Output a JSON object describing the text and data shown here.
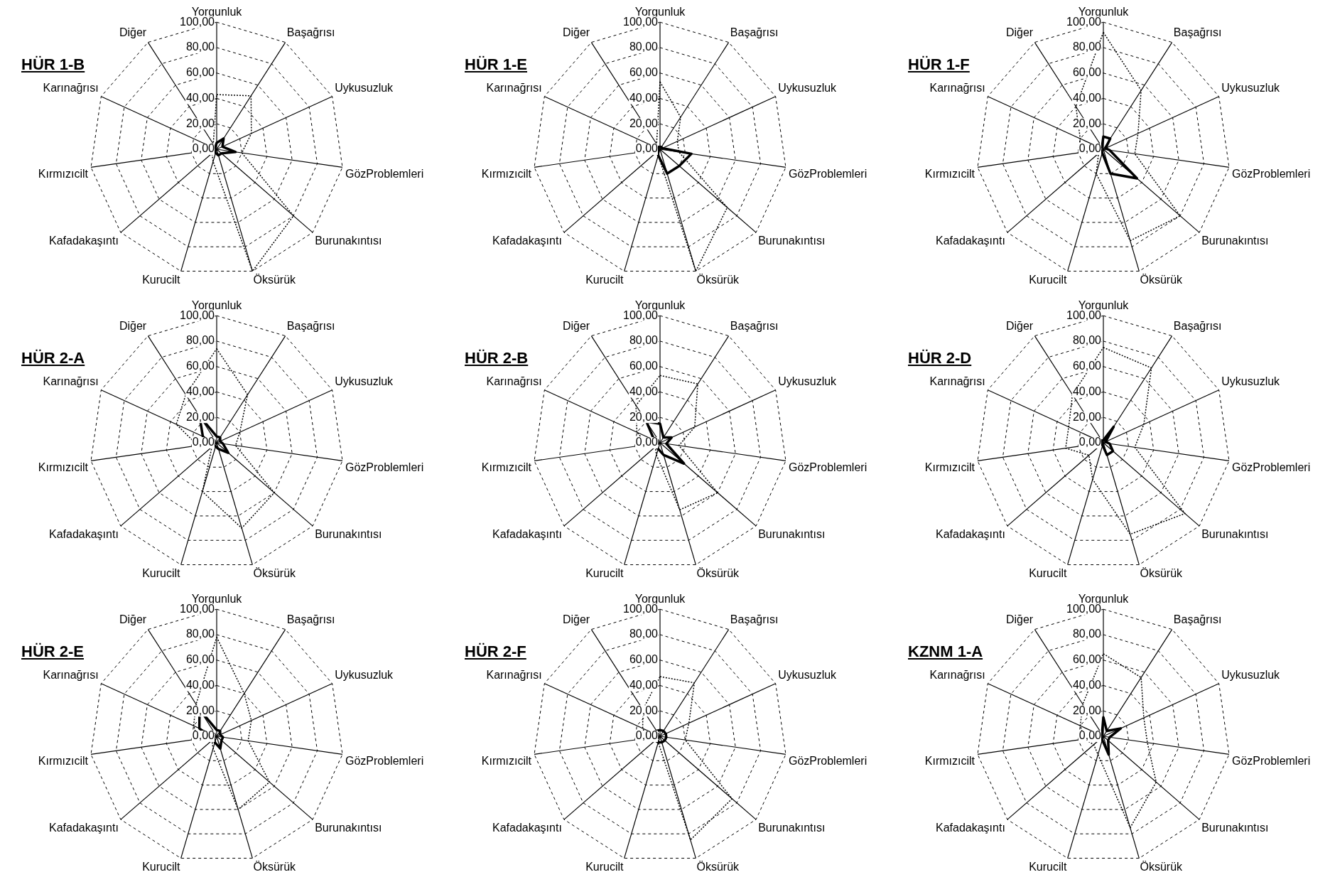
{
  "chart_data": [
    {
      "type": "radar",
      "title": "HÜR 1-B",
      "categories": [
        "Yorgunluk",
        "Başağrısı",
        "Uykusuzluk",
        "GözProblemleri",
        "Burunakıntısı",
        "Öksürük",
        "Kurucilt",
        "Kafadakaşıntı",
        "Kırmızıcilt",
        "Karınağrısı",
        "Diğer"
      ],
      "ylim": [
        0,
        100
      ],
      "yticks": [
        {
          "value": 0,
          "label": "0,00"
        },
        {
          "value": 20,
          "label": "20,00"
        },
        {
          "value": 40,
          "label": "40,00"
        },
        {
          "value": 60,
          "label": "60,00"
        },
        {
          "value": 80,
          "label": "80,00"
        },
        {
          "value": 100,
          "label": "100,00"
        }
      ],
      "grid": true,
      "legend": false,
      "marker": "none",
      "series": [
        {
          "color": "#000000",
          "line_style": "dotted",
          "values": [
            43,
            50,
            30,
            20,
            80,
            100,
            10,
            5,
            5,
            5,
            5
          ]
        },
        {
          "color": "#000000",
          "line_style": "solid",
          "values": [
            5,
            10,
            5,
            15,
            5,
            5,
            3,
            2,
            2,
            2,
            2
          ]
        }
      ]
    },
    {
      "type": "radar",
      "title": "HÜR 1-E",
      "categories": [
        "Yorgunluk",
        "Başağrısı",
        "Uykusuzluk",
        "GözProblemleri",
        "Burunakıntısı",
        "Öksürük",
        "Kurucilt",
        "Kafadakaşıntı",
        "Kırmızıcilt",
        "Karınağrısı",
        "Diğer"
      ],
      "ylim": [
        0,
        100
      ],
      "yticks": [
        {
          "value": 0,
          "label": "0,00"
        },
        {
          "value": 20,
          "label": "20,00"
        },
        {
          "value": 40,
          "label": "40,00"
        },
        {
          "value": 60,
          "label": "60,00"
        },
        {
          "value": 80,
          "label": "80,00"
        },
        {
          "value": 100,
          "label": "100,00"
        }
      ],
      "grid": true,
      "legend": false,
      "marker": "none",
      "series": [
        {
          "color": "#000000",
          "line_style": "dotted",
          "values": [
            53,
            30,
            15,
            15,
            70,
            100,
            5,
            2,
            2,
            3,
            5
          ]
        },
        {
          "color": "#000000",
          "line_style": "solid",
          "values": [
            2,
            2,
            2,
            25,
            20,
            20,
            5,
            2,
            2,
            2,
            2
          ]
        }
      ]
    },
    {
      "type": "radar",
      "title": "HÜR 1-F",
      "categories": [
        "Yorgunluk",
        "Başağrısı",
        "Uykusuzluk",
        "GözProblemleri",
        "Burunakıntısı",
        "Öksürük",
        "Kurucilt",
        "Kafadakaşıntı",
        "Kırmızıcilt",
        "Karınağrısı",
        "Diğer"
      ],
      "ylim": [
        0,
        100
      ],
      "yticks": [
        {
          "value": 0,
          "label": "0,00"
        },
        {
          "value": 20,
          "label": "20,00"
        },
        {
          "value": 40,
          "label": "40,00"
        },
        {
          "value": 60,
          "label": "60,00"
        },
        {
          "value": 80,
          "label": "80,00"
        },
        {
          "value": 100,
          "label": "100,00"
        }
      ],
      "grid": true,
      "legend": false,
      "marker": "none",
      "series": [
        {
          "color": "#000000",
          "line_style": "dotted",
          "values": [
            92,
            55,
            30,
            25,
            80,
            75,
            20,
            5,
            20,
            20,
            40
          ]
        },
        {
          "color": "#000000",
          "line_style": "solid",
          "values": [
            10,
            10,
            2,
            5,
            35,
            20,
            3,
            2,
            3,
            3,
            2
          ]
        }
      ]
    },
    {
      "type": "radar",
      "title": "HÜR 2-A",
      "categories": [
        "Yorgunluk",
        "Başağrısı",
        "Uykusuzluk",
        "GözProblemleri",
        "Burunakıntısı",
        "Öksürük",
        "Kurucilt",
        "Kafadakaşıntı",
        "Kırmızıcilt",
        "Karınağrısı",
        "Diğer"
      ],
      "ylim": [
        0,
        100
      ],
      "yticks": [
        {
          "value": 0,
          "label": "0,00"
        },
        {
          "value": 20,
          "label": "20,00"
        },
        {
          "value": 40,
          "label": "40,00"
        },
        {
          "value": 60,
          "label": "60,00"
        },
        {
          "value": 80,
          "label": "80,00"
        },
        {
          "value": 100,
          "label": "100,00"
        }
      ],
      "grid": true,
      "legend": false,
      "marker": "none",
      "series": [
        {
          "color": "#000000",
          "line_style": "dotted",
          "values": [
            74,
            45,
            20,
            15,
            60,
            70,
            40,
            5,
            15,
            35,
            45
          ]
        },
        {
          "color": "#000000",
          "line_style": "solid",
          "values": [
            5,
            5,
            3,
            5,
            12,
            5,
            3,
            3,
            5,
            12,
            25
          ]
        }
      ]
    },
    {
      "type": "radar",
      "title": "HÜR 2-B",
      "categories": [
        "Yorgunluk",
        "Başağrısı",
        "Uykusuzluk",
        "GözProblemleri",
        "Burunakıntısı",
        "Öksürük",
        "Kurucilt",
        "Kafadakaşıntı",
        "Kırmızıcilt",
        "Karınağrısı",
        "Diğer"
      ],
      "ylim": [
        0,
        100
      ],
      "yticks": [
        {
          "value": 0,
          "label": "0,00"
        },
        {
          "value": 20,
          "label": "20,00"
        },
        {
          "value": 40,
          "label": "40,00"
        },
        {
          "value": 60,
          "label": "60,00"
        },
        {
          "value": 80,
          "label": "80,00"
        },
        {
          "value": 100,
          "label": "100,00"
        }
      ],
      "grid": true,
      "legend": false,
      "marker": "none",
      "series": [
        {
          "color": "#000000",
          "line_style": "dotted",
          "values": [
            53,
            55,
            30,
            15,
            60,
            55,
            10,
            5,
            10,
            20,
            35
          ]
        },
        {
          "color": "#000000",
          "line_style": "solid",
          "values": [
            15,
            5,
            10,
            5,
            25,
            10,
            5,
            5,
            10,
            5,
            20
          ]
        }
      ]
    },
    {
      "type": "radar",
      "title": "HÜR 2-D",
      "categories": [
        "Yorgunluk",
        "Başağrısı",
        "Uykusuzluk",
        "GözProblemleri",
        "Burunakıntısı",
        "Öksürük",
        "Kurucilt",
        "Kafadakaşıntı",
        "Kırmızıcilt",
        "Karınağrısı",
        "Diğer"
      ],
      "ylim": [
        0,
        100
      ],
      "yticks": [
        {
          "value": 0,
          "label": "0,00"
        },
        {
          "value": 20,
          "label": "20,00"
        },
        {
          "value": 40,
          "label": "40,00"
        },
        {
          "value": 60,
          "label": "60,00"
        },
        {
          "value": 80,
          "label": "80,00"
        },
        {
          "value": 100,
          "label": "100,00"
        }
      ],
      "grid": true,
      "legend": false,
      "marker": "none",
      "series": [
        {
          "color": "#000000",
          "line_style": "dotted",
          "values": [
            75,
            70,
            35,
            25,
            85,
            75,
            30,
            15,
            30,
            30,
            45
          ]
        },
        {
          "color": "#000000",
          "line_style": "solid",
          "values": [
            2,
            15,
            2,
            5,
            10,
            10,
            2,
            2,
            2,
            2,
            2
          ]
        }
      ]
    },
    {
      "type": "radar",
      "title": "HÜR 2-E",
      "categories": [
        "Yorgunluk",
        "Başağrısı",
        "Uykusuzluk",
        "GözProblemleri",
        "Burunakıntısı",
        "Öksürük",
        "Kurucilt",
        "Kafadakaşıntı",
        "Kırmızıcilt",
        "Karınağrısı",
        "Diğer"
      ],
      "ylim": [
        0,
        100
      ],
      "yticks": [
        {
          "value": 0,
          "label": "0,00"
        },
        {
          "value": 20,
          "label": "20,00"
        },
        {
          "value": 40,
          "label": "40,00"
        },
        {
          "value": 60,
          "label": "60,00"
        },
        {
          "value": 80,
          "label": "80,00"
        },
        {
          "value": 100,
          "label": "100,00"
        }
      ],
      "grid": true,
      "legend": false,
      "marker": "none",
      "series": [
        {
          "color": "#000000",
          "line_style": "dotted",
          "values": [
            78,
            40,
            30,
            25,
            55,
            60,
            10,
            5,
            15,
            20,
            30
          ]
        },
        {
          "color": "#000000",
          "line_style": "solid",
          "values": [
            5,
            5,
            3,
            5,
            5,
            10,
            5,
            3,
            5,
            15,
            25
          ]
        }
      ]
    },
    {
      "type": "radar",
      "title": "HÜR 2-F",
      "categories": [
        "Yorgunluk",
        "Başağrısı",
        "Uykusuzluk",
        "GözProblemleri",
        "Burunakıntısı",
        "Öksürük",
        "Kurucilt",
        "Kafadakaşıntı",
        "Kırmızıcilt",
        "Karınağrısı",
        "Diğer"
      ],
      "ylim": [
        0,
        100
      ],
      "yticks": [
        {
          "value": 0,
          "label": "0,00"
        },
        {
          "value": 20,
          "label": "20,00"
        },
        {
          "value": 40,
          "label": "40,00"
        },
        {
          "value": 60,
          "label": "60,00"
        },
        {
          "value": 80,
          "label": "80,00"
        },
        {
          "value": 100,
          "label": "100,00"
        }
      ],
      "grid": true,
      "legend": false,
      "marker": "none",
      "series": [
        {
          "color": "#000000",
          "line_style": "dotted",
          "values": [
            47,
            50,
            25,
            20,
            75,
            85,
            5,
            2,
            10,
            15,
            25
          ]
        },
        {
          "color": "#000000",
          "line_style": "solid",
          "values": [
            5,
            5,
            5,
            5,
            5,
            5,
            5,
            5,
            5,
            5,
            5
          ]
        }
      ]
    },
    {
      "type": "radar",
      "title": "KZNM 1-A",
      "categories": [
        "Yorgunluk",
        "Başağrısı",
        "Uykusuzluk",
        "GözProblemleri",
        "Burunakıntısı",
        "Öksürük",
        "Kurucilt",
        "Kafadakaşıntı",
        "Kırmızıcilt",
        "Karınağrısı",
        "Diğer"
      ],
      "ylim": [
        0,
        100
      ],
      "yticks": [
        {
          "value": 0,
          "label": "0,00"
        },
        {
          "value": 20,
          "label": "20,00"
        },
        {
          "value": 40,
          "label": "40,00"
        },
        {
          "value": 60,
          "label": "60,00"
        },
        {
          "value": 80,
          "label": "80,00"
        },
        {
          "value": 100,
          "label": "100,00"
        }
      ],
      "grid": true,
      "legend": false,
      "marker": "none",
      "series": [
        {
          "color": "#000000",
          "line_style": "dotted",
          "values": [
            65,
            55,
            35,
            35,
            55,
            75,
            15,
            10,
            15,
            20,
            30
          ]
        },
        {
          "color": "#000000",
          "line_style": "solid",
          "values": [
            15,
            5,
            15,
            5,
            5,
            15,
            3,
            2,
            2,
            2,
            2
          ]
        }
      ]
    }
  ]
}
